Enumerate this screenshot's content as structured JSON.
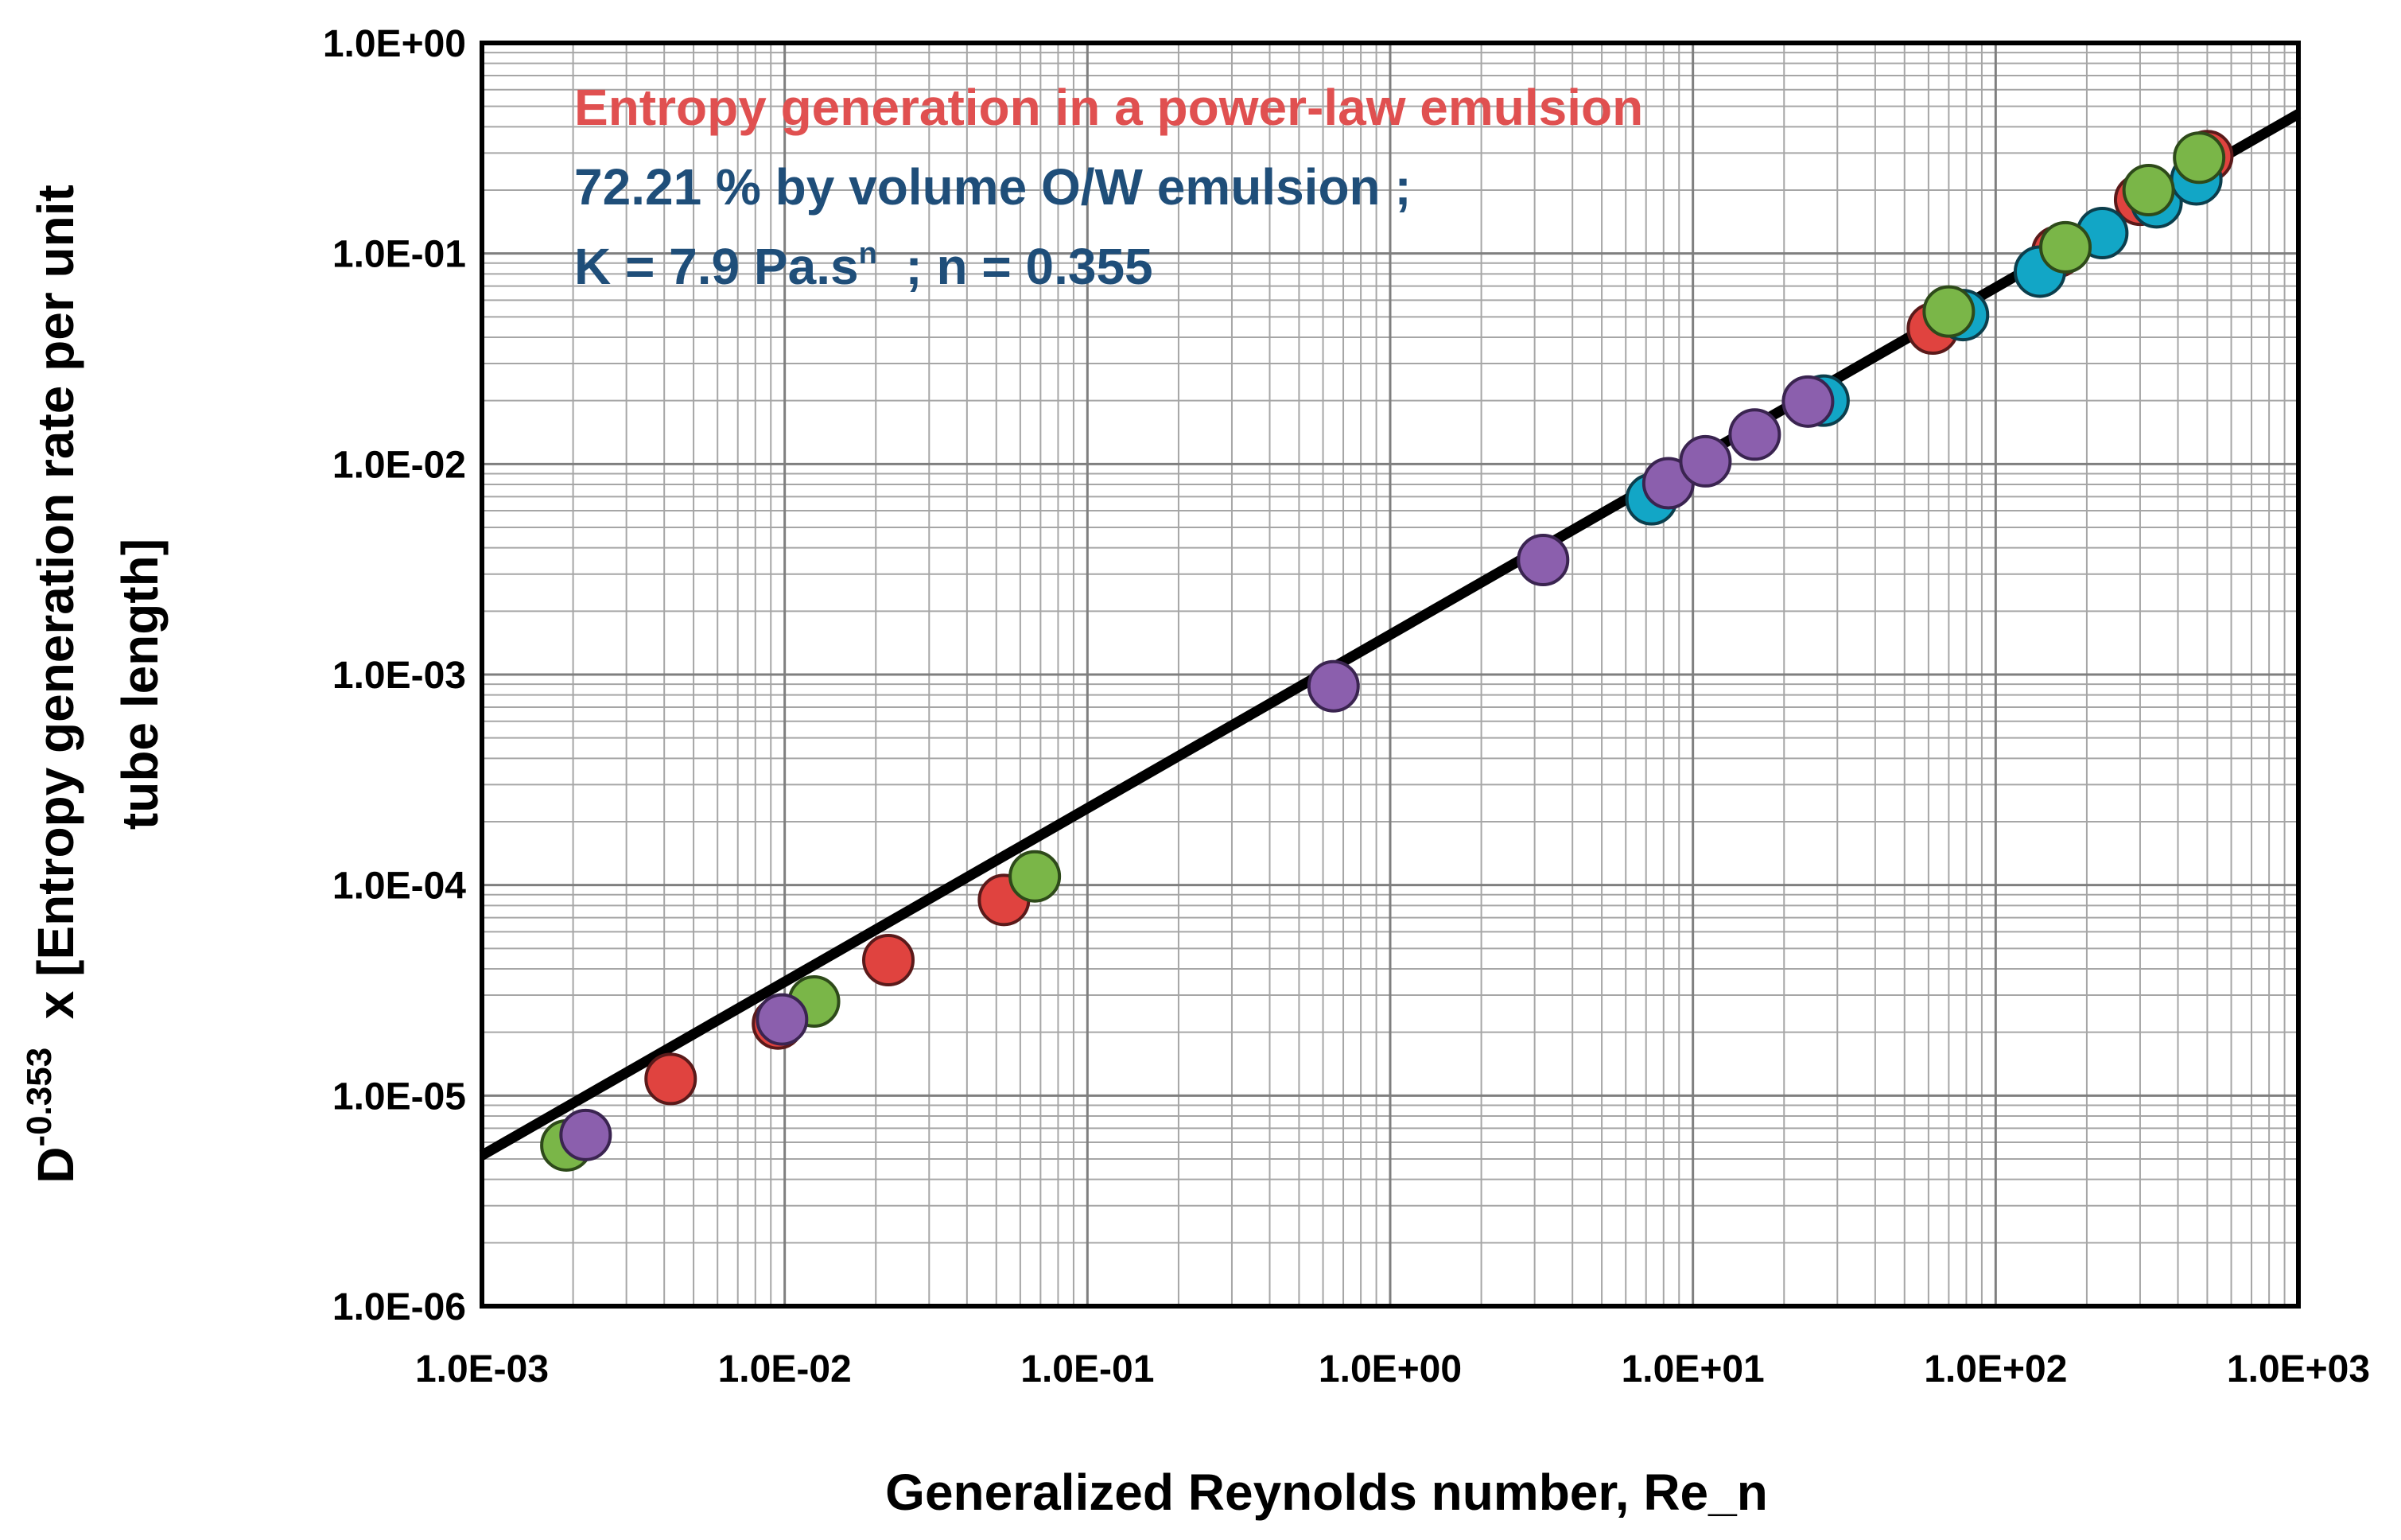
{
  "chart_data": {
    "type": "scatter",
    "x_scale": "log",
    "y_scale": "log",
    "xlim": [
      0.001,
      1000
    ],
    "ylim": [
      1e-06,
      1
    ],
    "grid": true,
    "x_ticks": [
      0.001,
      0.01,
      0.1,
      1,
      10,
      100,
      1000
    ],
    "x_tick_labels": [
      "1.0E-03",
      "1.0E-02",
      "1.0E-01",
      "1.0E+00",
      "1.0E+01",
      "1.0E+02",
      "1.0E+03"
    ],
    "y_ticks": [
      1,
      0.1,
      0.01,
      0.001,
      0.0001,
      1e-05,
      1e-06
    ],
    "y_tick_labels": [
      "1.0E+00",
      "1.0E-01",
      "1.0E-02",
      "1.0E-03",
      "1.0E-04",
      "1.0E-05",
      "1.0E-06"
    ],
    "xlabel": "Generalized Reynolds number, Re_n",
    "ylabel": {
      "prefix": "D",
      "exponent": "-0.353",
      "line1": "  x [Entropy generation rate per unit",
      "line2": "tube length]"
    },
    "annotations": {
      "title": "Entropy generation in a power-law emulsion",
      "line2": "72.21 % by volume  O/W emulsion ;",
      "line3_a": "K = 7.9 Pa.s",
      "line3_sup": "n",
      "line3_b": "  ; n = 0.355"
    },
    "colors": {
      "title": "#e05050",
      "annotation": "#1f4e79",
      "axis": "#000000",
      "fit_line": "#000000",
      "grid": "#a6a6a6"
    },
    "fit_line": {
      "x": [
        0.001,
        1000
      ],
      "y": [
        5.2e-06,
        0.46
      ]
    },
    "series": [
      {
        "name": "red",
        "color": "#e0433f",
        "stroke": "#5a1a1a",
        "points": [
          [
            0.0042,
            1.2e-05
          ],
          [
            0.0095,
            2.2e-05
          ],
          [
            0.022,
            4.4e-05
          ],
          [
            0.053,
            8.5e-05
          ],
          [
            62,
            0.044
          ],
          [
            160,
            0.102
          ],
          [
            300,
            0.18
          ],
          [
            500,
            0.29
          ]
        ]
      },
      {
        "name": "cyan",
        "color": "#12a6c6",
        "stroke": "#0c3e4c",
        "points": [
          [
            7.3,
            0.0068
          ],
          [
            27,
            0.02
          ],
          [
            78,
            0.051
          ],
          [
            140,
            0.082
          ],
          [
            225,
            0.125
          ],
          [
            340,
            0.175
          ],
          [
            460,
            0.225
          ]
        ]
      },
      {
        "name": "green",
        "color": "#7ab648",
        "stroke": "#2e4a1a",
        "points": [
          [
            0.0019,
            5.8e-06
          ],
          [
            0.0125,
            2.8e-05
          ],
          [
            0.067,
            0.00011
          ],
          [
            70,
            0.053
          ],
          [
            170,
            0.107
          ],
          [
            320,
            0.2
          ],
          [
            470,
            0.285
          ]
        ]
      },
      {
        "name": "purple",
        "color": "#8b5fad",
        "stroke": "#3a2450",
        "points": [
          [
            0.0022,
            6.5e-06
          ],
          [
            0.0098,
            2.3e-05
          ],
          [
            0.65,
            0.00088
          ],
          [
            3.2,
            0.0035
          ],
          [
            8.3,
            0.0081
          ],
          [
            11,
            0.0103
          ],
          [
            16,
            0.0138
          ],
          [
            24,
            0.0198
          ]
        ]
      }
    ]
  }
}
